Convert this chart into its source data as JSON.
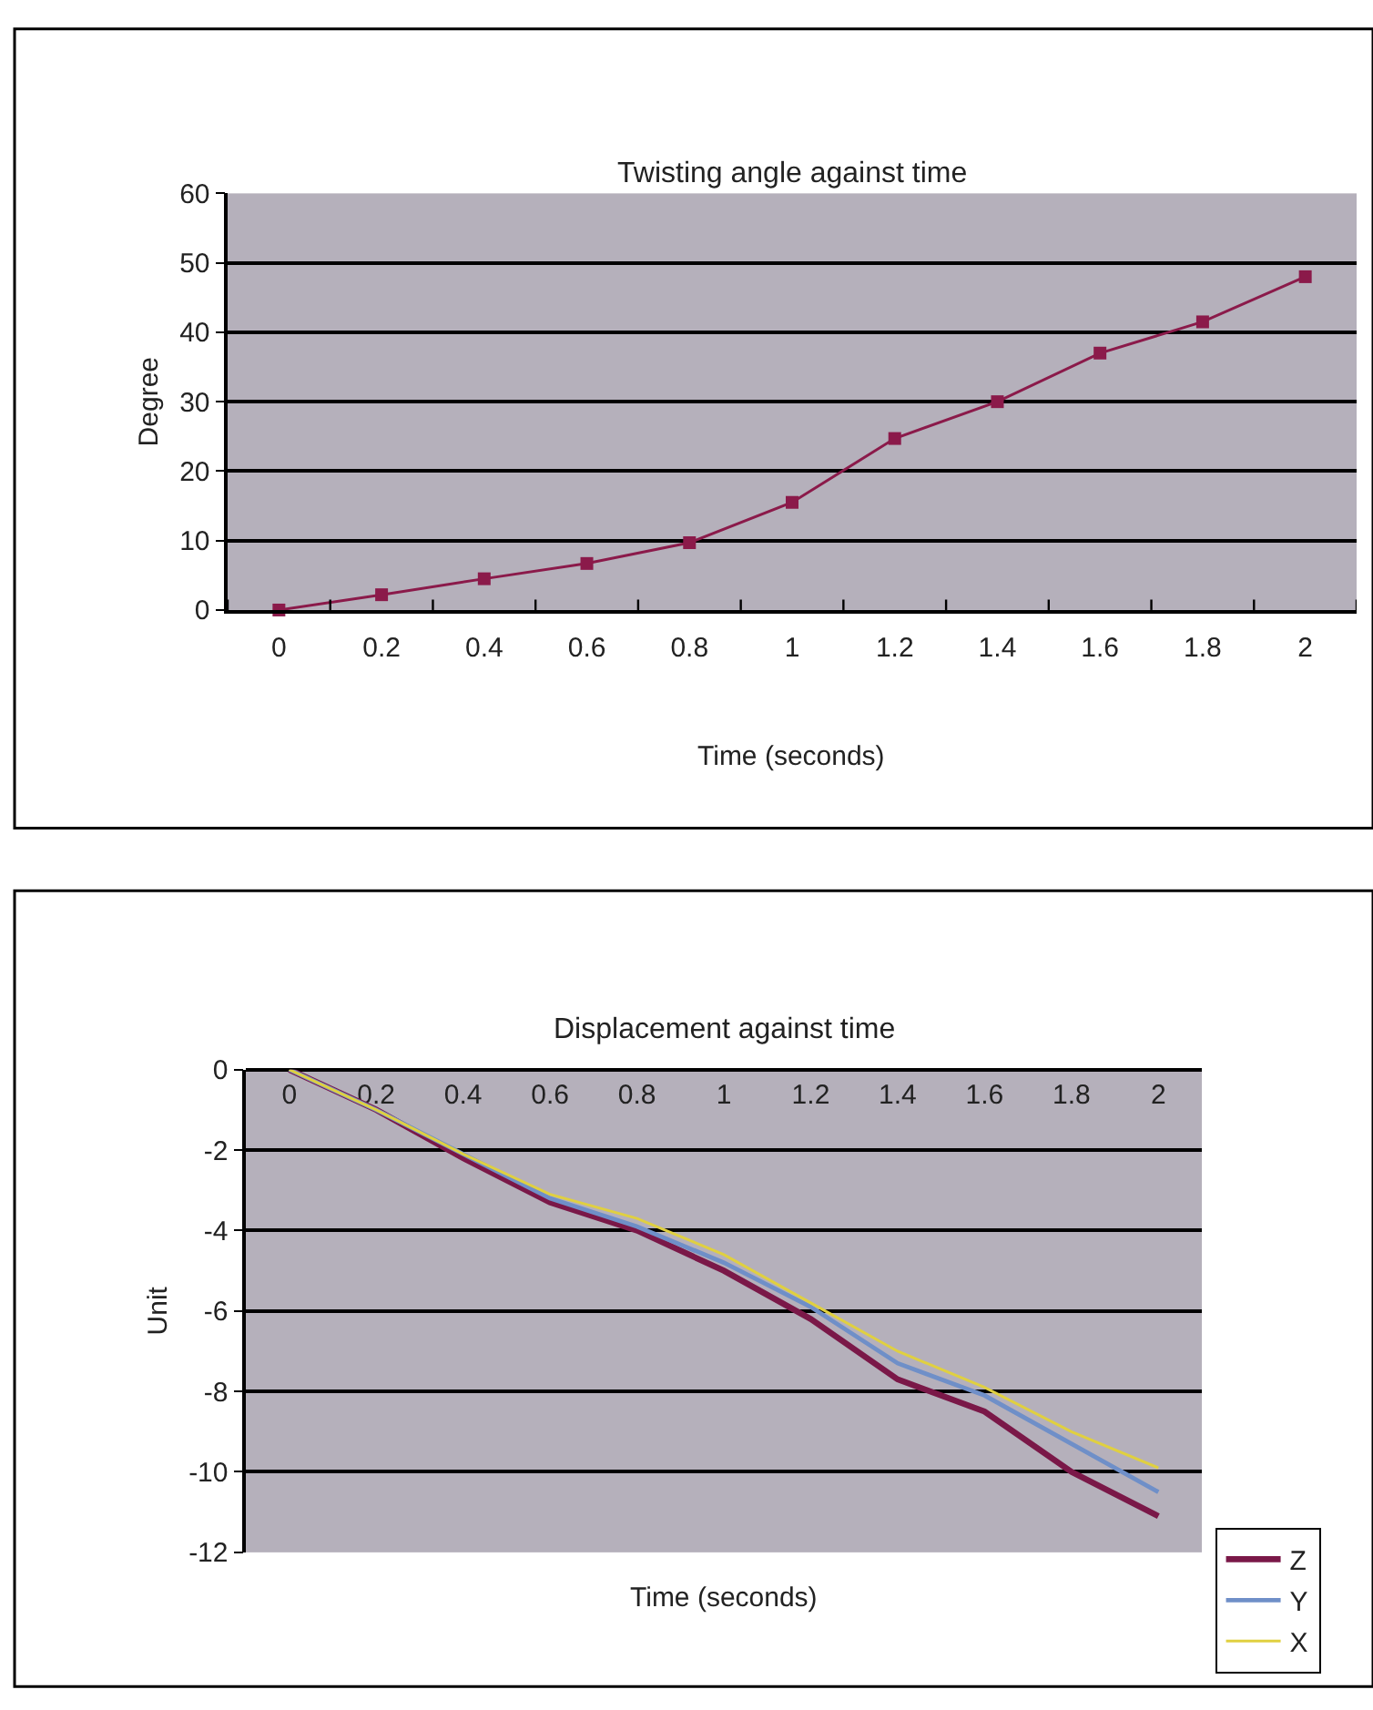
{
  "chart_data": [
    {
      "type": "line",
      "title": "Twisting angle against time",
      "xlabel": "Time (seconds)",
      "ylabel": "Degree",
      "categories": [
        "0",
        "0.2",
        "0.4",
        "0.6",
        "0.8",
        "1",
        "1.2",
        "1.4",
        "1.6",
        "1.8",
        "2"
      ],
      "series": [
        {
          "color": "#8b1a4a",
          "values": [
            0,
            2.2,
            4.5,
            6.7,
            9.7,
            15.5,
            24.7,
            30,
            37,
            41.5,
            48
          ]
        }
      ],
      "ylim": [
        0,
        60
      ],
      "yticks": [
        0,
        10,
        20,
        30,
        40,
        50,
        60
      ],
      "grid": "y",
      "legend": false,
      "marker": "square",
      "line_style": "solid"
    },
    {
      "type": "line",
      "title": "Displacement against time",
      "xlabel": "Time (seconds)",
      "ylabel": "Unit",
      "categories": [
        "0",
        "0.2",
        "0.4",
        "0.6",
        "0.8",
        "1",
        "1.2",
        "1.4",
        "1.6",
        "1.8",
        "2"
      ],
      "series": [
        {
          "name": "Z",
          "color": "#7a1848",
          "values": [
            0,
            -1.0,
            -2.2,
            -3.3,
            -4.0,
            -5.0,
            -6.2,
            -7.7,
            -8.5,
            -10.0,
            -11.1
          ]
        },
        {
          "name": "Y",
          "color": "#6f8fc8",
          "values": [
            0,
            -1.0,
            -2.1,
            -3.2,
            -3.9,
            -4.8,
            -5.9,
            -7.3,
            -8.1,
            -9.3,
            -10.5
          ]
        },
        {
          "name": "X",
          "color": "#e0d040",
          "values": [
            0,
            -1.0,
            -2.1,
            -3.1,
            -3.7,
            -4.6,
            -5.8,
            -7.0,
            -7.9,
            -9.0,
            -9.9
          ]
        }
      ],
      "ylim": [
        -12,
        0
      ],
      "yticks": [
        -12,
        -10,
        -8,
        -6,
        -4,
        -2,
        0
      ],
      "grid": "y",
      "legend": "right",
      "marker": "none",
      "line_style": "solid"
    }
  ]
}
